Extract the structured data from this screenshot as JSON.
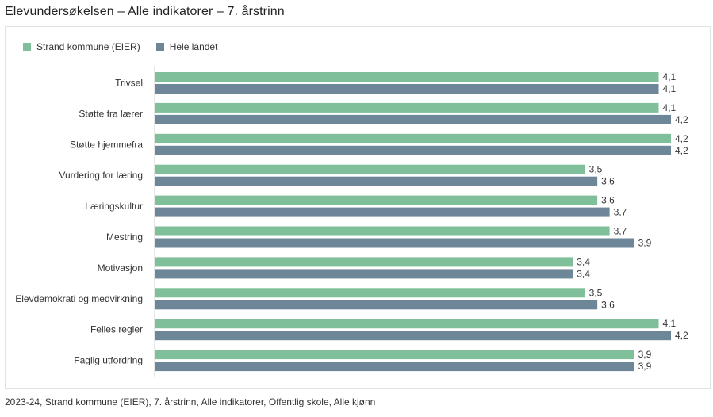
{
  "page": {
    "title": "Elevundersøkelsen – Alle indikatorer – 7. årstrinn",
    "caption": "2023-24, Strand kommune (EIER), 7. årstrinn, Alle indikatorer, Offentlig skole, Alle kjønn"
  },
  "colors": {
    "series1": "#7fbf99",
    "series2": "#6d8799"
  },
  "chart_data": {
    "type": "bar",
    "orientation": "horizontal",
    "grid": false,
    "legend_position": "top-left",
    "xlim": [
      0,
      4.2
    ],
    "categories": [
      "Trivsel",
      "Støtte fra lærer",
      "Støtte hjemmefra",
      "Vurdering for læring",
      "Læringskultur",
      "Mestring",
      "Motivasjon",
      "Elevdemokrati og medvirkning",
      "Felles regler",
      "Faglig utfordring"
    ],
    "series": [
      {
        "name": "Strand kommune (EIER)",
        "values": [
          4.1,
          4.1,
          4.2,
          3.5,
          3.6,
          3.7,
          3.4,
          3.5,
          4.1,
          3.9
        ],
        "labels": [
          "4,1",
          "4,1",
          "4,2",
          "3,5",
          "3,6",
          "3,7",
          "3,4",
          "3,5",
          "4,1",
          "3,9"
        ]
      },
      {
        "name": "Hele landet",
        "values": [
          4.1,
          4.2,
          4.2,
          3.6,
          3.7,
          3.9,
          3.4,
          3.6,
          4.2,
          3.9
        ],
        "labels": [
          "4,1",
          "4,2",
          "4,2",
          "3,6",
          "3,7",
          "3,9",
          "3,4",
          "3,6",
          "4,2",
          "3,9"
        ]
      }
    ]
  }
}
